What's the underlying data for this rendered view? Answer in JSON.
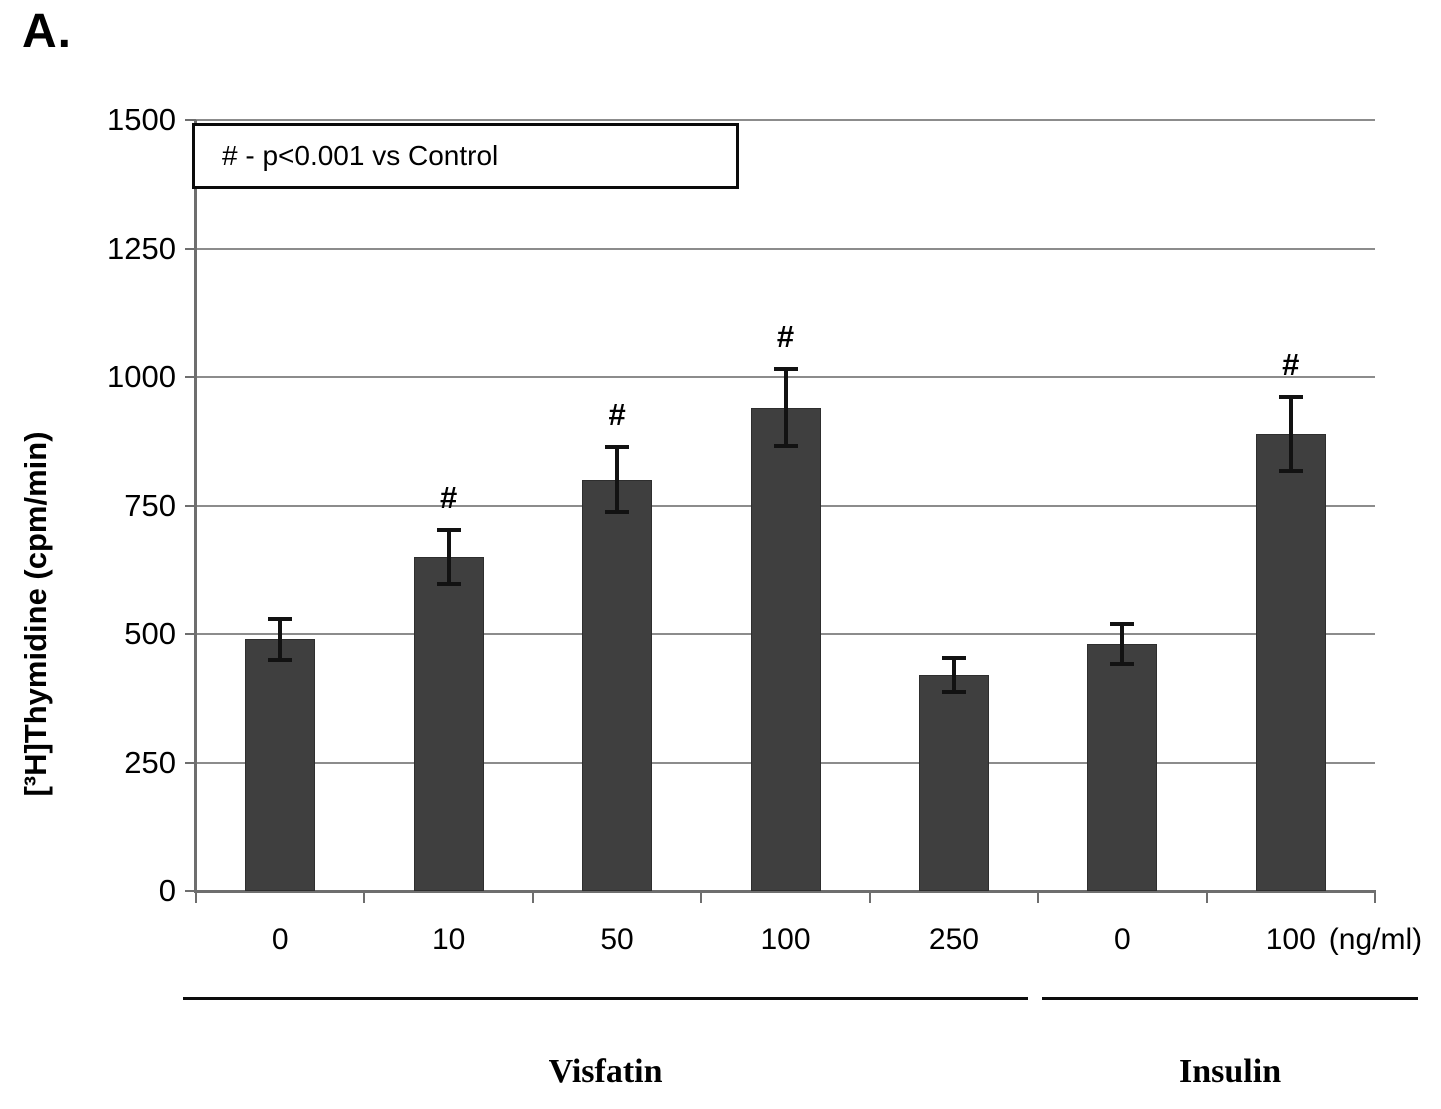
{
  "chart_data": {
    "type": "bar",
    "panel_label": "A.",
    "title": "",
    "ylabel": "[³H]Thymidine (cpm/min)",
    "xlabel": "",
    "unit_label": "(ng/ml)",
    "annotation_text": "# - p<0.001 vs Control",
    "ylim": [
      0,
      1500
    ],
    "yticks": [
      0,
      250,
      500,
      750,
      1000,
      1250,
      1500
    ],
    "grid": "horizontal",
    "legend_position": "top-left-inside-box",
    "groups": [
      {
        "label": "Visfatin",
        "categories": [
          "0",
          "10",
          "50",
          "100",
          "250"
        ]
      },
      {
        "label": "Insulin",
        "categories": [
          "0",
          "100"
        ]
      }
    ],
    "bars": [
      {
        "group": "Visfatin",
        "dose": "0",
        "value": 490,
        "error": 40,
        "significance": ""
      },
      {
        "group": "Visfatin",
        "dose": "10",
        "value": 650,
        "error": 52,
        "significance": "#"
      },
      {
        "group": "Visfatin",
        "dose": "50",
        "value": 800,
        "error": 63,
        "significance": "#"
      },
      {
        "group": "Visfatin",
        "dose": "100",
        "value": 940,
        "error": 75,
        "significance": "#"
      },
      {
        "group": "Visfatin",
        "dose": "250",
        "value": 420,
        "error": 33,
        "significance": ""
      },
      {
        "group": "Insulin",
        "dose": "0",
        "value": 480,
        "error": 39,
        "significance": ""
      },
      {
        "group": "Insulin",
        "dose": "100",
        "value": 890,
        "error": 72,
        "significance": "#"
      }
    ],
    "colors": {
      "bar": "#3f3f3f",
      "bar_border": "#2e2e2e",
      "grid": "#8c8c8c",
      "axis": "#6e6e6e",
      "error": "#121212",
      "text": "#000000"
    }
  }
}
